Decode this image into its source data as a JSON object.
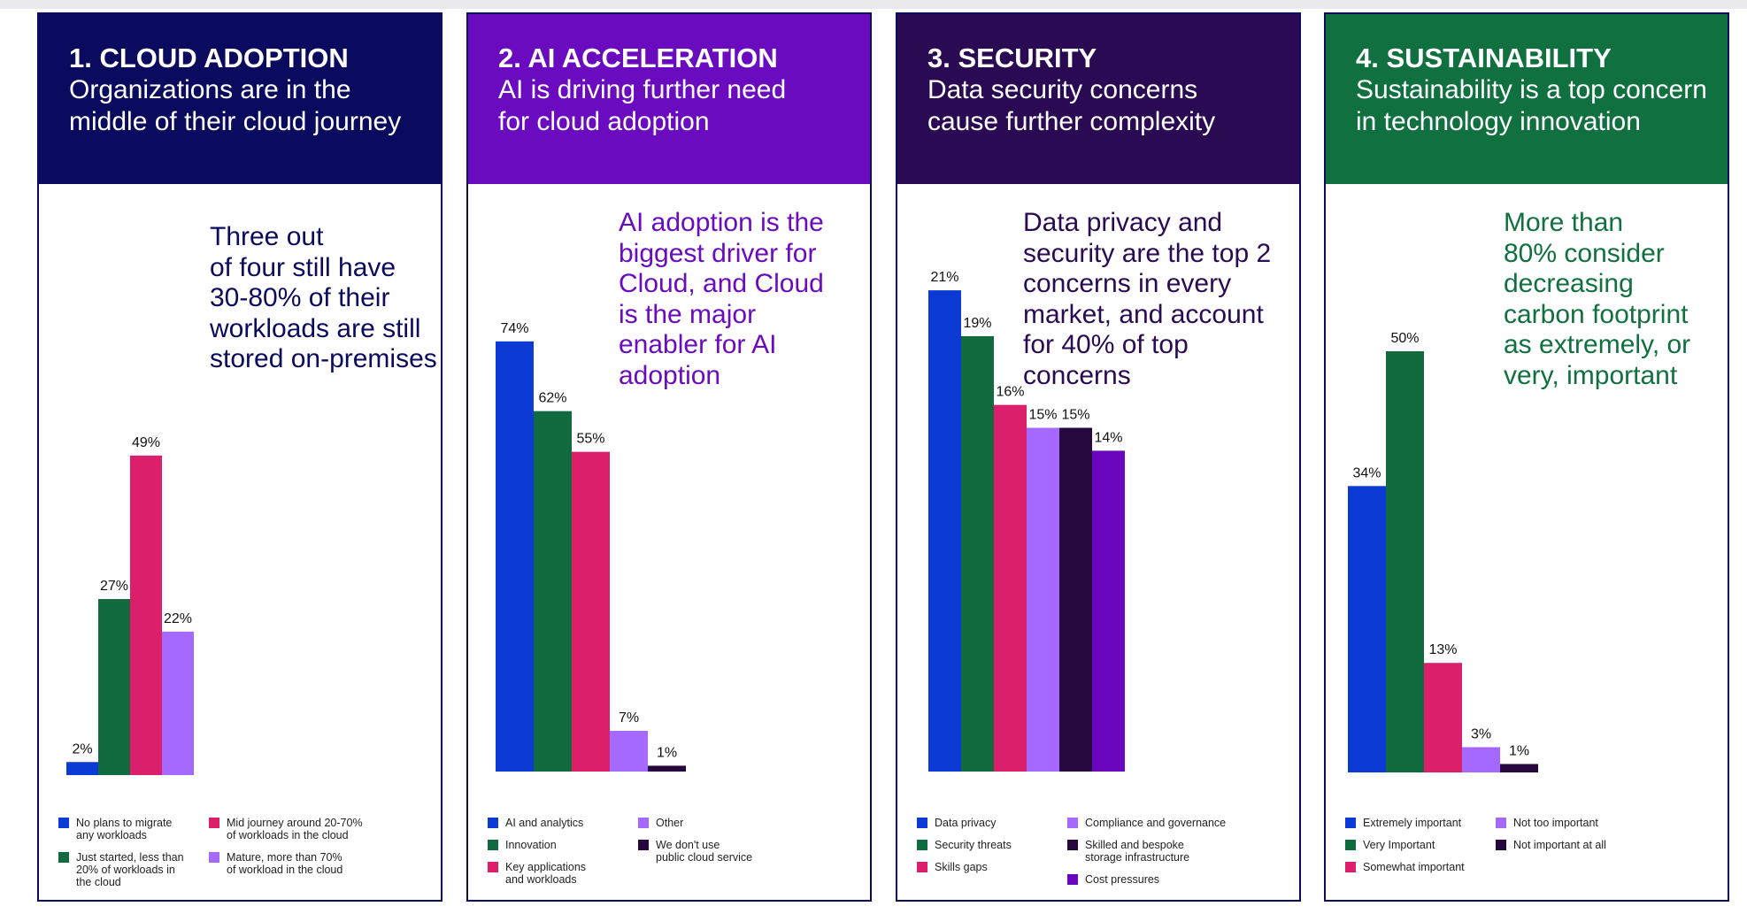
{
  "colors": {
    "blue": "#0b3bd4",
    "green": "#116b3f",
    "pink": "#dc1f6b",
    "lavender": "#a569ff",
    "dark_purple": "#26083f",
    "purple": "#6a06bd",
    "navy": "#0a0a5e",
    "violet_header": "#6a0bbf",
    "deep_purple_header": "#2a0a52",
    "green_header": "#10703f"
  },
  "panels": [
    {
      "title": "1. CLOUD ADOPTION",
      "subtitle": "Organizations are in the\nmiddle of their cloud journey",
      "headline": "Three out\nof four still have\n30-80% of their\nworkloads are still\nstored on-premises",
      "header_color": "#0a0a5e",
      "headline_color": "#0a0a5e"
    },
    {
      "title": "2. AI ACCELERATION",
      "subtitle": "AI is driving further need\nfor cloud adoption",
      "headline": "AI adoption is the\nbiggest driver for\nCloud, and Cloud\nis the major\nenabler for AI\nadoption",
      "header_color": "#6a0bbf",
      "headline_color": "#6a0bbf"
    },
    {
      "title": "3. SECURITY",
      "subtitle": "Data security concerns\ncause further complexity",
      "headline": "Data privacy and\nsecurity are the top 2\nconcerns in every\nmarket, and account\nfor 40% of top\nconcerns",
      "header_color": "#2a0a52",
      "headline_color": "#2a0a52"
    },
    {
      "title": "4. SUSTAINABILITY",
      "subtitle": "Sustainability is a top concern\nin technology innovation",
      "headline": "More than\n80% consider\ndecreasing\ncarbon footprint\nas extremely, or\nvery, important",
      "header_color": "#10703f",
      "headline_color": "#10703f"
    }
  ],
  "chart_data": [
    {
      "type": "bar",
      "unit": "%",
      "categories": [
        "No plans to migrate\nany workloads",
        "Just started, less than\n20% of workloads in\nthe cloud",
        "Mid journey around 20-70%\nof workloads in the cloud",
        "Mature, more than 70%\nof workload in the cloud"
      ],
      "values": [
        2,
        27,
        49,
        22
      ],
      "labels": [
        "2%",
        "27%",
        "49%",
        "22%"
      ],
      "colors": [
        "#0b3bd4",
        "#116b3f",
        "#dc1f6b",
        "#a569ff"
      ],
      "legend_order": [
        0,
        2,
        1,
        3
      ],
      "legend": "bottom, two columns"
    },
    {
      "type": "bar",
      "unit": "%",
      "categories": [
        "AI and analytics",
        "Innovation",
        "Key applications\nand workloads",
        "Other",
        "We don't use\npublic cloud service"
      ],
      "values": [
        74,
        62,
        55,
        7,
        1
      ],
      "labels": [
        "74%",
        "62%",
        "55%",
        "7%",
        "1%"
      ],
      "colors": [
        "#0b3bd4",
        "#116b3f",
        "#dc1f6b",
        "#a569ff",
        "#26083f"
      ],
      "legend_order": [
        0,
        3,
        1,
        4,
        2
      ],
      "legend": "bottom, two columns"
    },
    {
      "type": "bar",
      "unit": "%",
      "categories": [
        "Data privacy",
        "Security threats",
        "Skills gaps",
        "Compliance and governance",
        "Skilled and bespoke\nstorage infrastructure",
        "Cost pressures"
      ],
      "values": [
        21,
        19,
        16,
        15,
        15,
        14
      ],
      "labels": [
        "21%",
        "19%",
        "16%",
        "15%",
        "15%",
        "14%"
      ],
      "colors": [
        "#0b3bd4",
        "#116b3f",
        "#dc1f6b",
        "#a569ff",
        "#26083f",
        "#6a06bd"
      ],
      "legend_order": [
        0,
        3,
        1,
        4,
        2,
        5
      ],
      "legend": "bottom, two columns"
    },
    {
      "type": "bar",
      "unit": "%",
      "categories": [
        "Extremely important",
        "Very Important",
        "Somewhat important",
        "Not too important",
        "Not important at all"
      ],
      "values": [
        34,
        50,
        13,
        3,
        1
      ],
      "labels": [
        "34%",
        "50%",
        "13%",
        "3%",
        "1%"
      ],
      "colors": [
        "#0b3bd4",
        "#116b3f",
        "#dc1f6b",
        "#a569ff",
        "#26083f"
      ],
      "legend_order": [
        0,
        3,
        1,
        4,
        2
      ],
      "legend": "bottom, two columns"
    }
  ]
}
